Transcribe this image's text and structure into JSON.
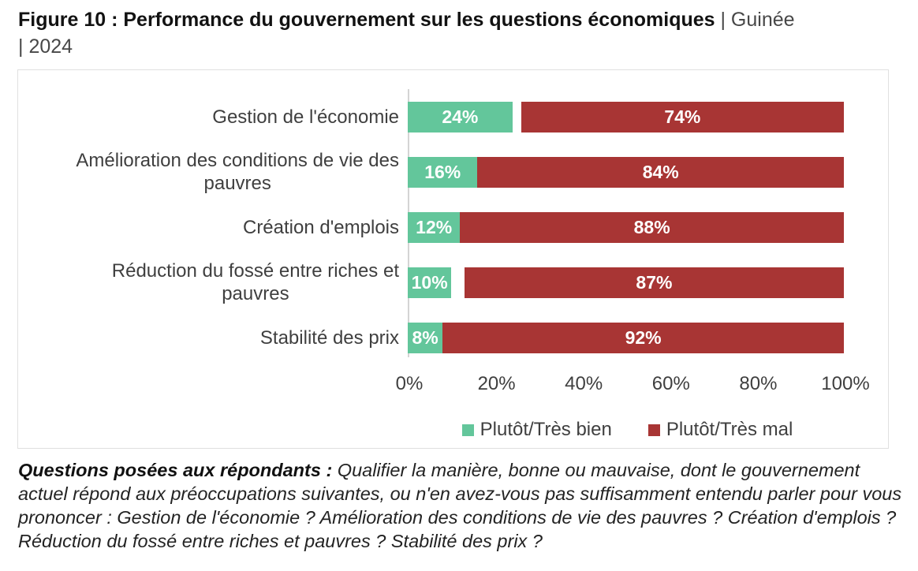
{
  "title": {
    "bold": "Figure 10 : Performance du gouvernement sur les questions économiques",
    "line1_suffix": " | Guinée",
    "line2": "| 2024"
  },
  "chart_data": {
    "type": "bar",
    "orientation": "horizontal",
    "stacked": true,
    "categories": [
      "Gestion de l'économie",
      "Amélioration des conditions de vie des\npauvres",
      "Création d'emplois",
      "Réduction du fossé entre riches et\npauvres",
      "Stabilité des prix"
    ],
    "series": [
      {
        "name": "Plutôt/Très bien",
        "color": "#63c69b",
        "values": [
          24,
          16,
          12,
          10,
          8
        ]
      },
      {
        "name": "Plutôt/Très mal",
        "color": "#a83534",
        "values": [
          74,
          84,
          88,
          87,
          92
        ]
      }
    ],
    "value_label_format": "{v}%",
    "x_ticks": [
      "0%",
      "20%",
      "40%",
      "60%",
      "80%",
      "100%"
    ],
    "xlim": [
      0,
      100
    ],
    "grid": false,
    "legend_position": "bottom"
  },
  "footnote": {
    "lead": "Questions posées aux répondants :",
    "body": " Qualifier la manière, bonne ou mauvaise, dont le gouvernement actuel répond aux préoccupations suivantes, ou n'en avez-vous pas suffisamment entendu parler pour vous prononcer : Gestion de l'économie ? Amélioration des conditions de vie des pauvres ? Création d'emplois ? Réduction du fossé entre riches et pauvres ? Stabilité des prix ?"
  },
  "colors": {
    "green": "#63c69b",
    "red": "#a83534",
    "frame_border": "#e0e0e0",
    "axis_line": "#d4d4d4",
    "label_text": "#3f3f3f",
    "title_gray": "#474747"
  }
}
